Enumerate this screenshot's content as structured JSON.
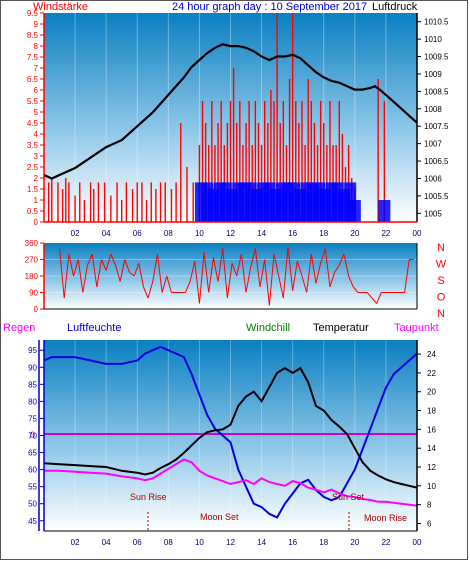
{
  "header": {
    "left_label": "Windstärke",
    "title": "24 hour graph day : 10 September 2017",
    "right_label": "Luftdruck"
  },
  "panel3_header": {
    "regen": "Regen",
    "luftfeuchte": "Luftfeuchte",
    "windchill": "Windchill",
    "temperatur": "Temperatur",
    "taupunkt": "Taupunkt"
  },
  "direction_letters": [
    "N",
    "W",
    "S",
    "O",
    "N"
  ],
  "time_ticks": [
    "02",
    "04",
    "06",
    "08",
    "10",
    "12",
    "14",
    "16",
    "18",
    "20",
    "22",
    "00"
  ],
  "annotations": {
    "sun_rise": "Sun Rise",
    "moon_set": "Moon Set",
    "sun_set": "Sun Set",
    "moon_rise": "Moon Rise",
    "rain_zero": "0"
  },
  "colors": {
    "wind": "#ff0000",
    "gust": "#0000ff",
    "pressure": "#000000",
    "humidity": "#0000dd",
    "temperature": "#000000",
    "dewpoint": "#ff00ff",
    "windchill": "#008000",
    "bg_top": "#0a7fc0",
    "bg_bottom": "#ffffff"
  },
  "chart_data": [
    {
      "type": "line",
      "title": "24 hour graph day : 10 September 2017",
      "x_unit": "hour",
      "xlim": [
        0,
        24
      ],
      "left_axis": {
        "label": "Windstärke",
        "ticks": [
          "0",
          "0.5",
          "1",
          "1.5",
          "2",
          "2.5",
          "3",
          "3.5",
          "4",
          "4.5",
          "5",
          "5.5",
          "6",
          "6.5",
          "7",
          "7.5",
          "8",
          "8.5",
          "9",
          "9.5"
        ],
        "ylim": [
          0,
          9.5
        ]
      },
      "right_axis": {
        "label": "Luftdruck",
        "ticks": [
          "1005",
          "1005.5",
          "1006",
          "1006.5",
          "1007",
          "1007.5",
          "1008",
          "1008.5",
          "1009",
          "1009.5",
          "1010",
          "1010.5"
        ],
        "ylim": [
          1004.75,
          1010.75
        ]
      },
      "series": [
        {
          "name": "Luftdruck",
          "axis": "right",
          "x": [
            0,
            0.5,
            1,
            1.5,
            2,
            3,
            4,
            5,
            6,
            7,
            8,
            9,
            9.5,
            10,
            10.5,
            11,
            11.5,
            12,
            12.5,
            13,
            13.5,
            14,
            14.5,
            15,
            15.5,
            16,
            16.5,
            17,
            17.5,
            18,
            18.5,
            19,
            19.5,
            20,
            20.5,
            21,
            21.3,
            21.6,
            22,
            22.5,
            23,
            23.5,
            24
          ],
          "y": [
            1006.1,
            1006.0,
            1006.1,
            1006.2,
            1006.3,
            1006.6,
            1006.9,
            1007.1,
            1007.5,
            1007.9,
            1008.4,
            1008.9,
            1009.2,
            1009.4,
            1009.6,
            1009.75,
            1009.85,
            1009.8,
            1009.8,
            1009.75,
            1009.65,
            1009.5,
            1009.4,
            1009.5,
            1009.5,
            1009.55,
            1009.45,
            1009.25,
            1009.05,
            1008.9,
            1008.8,
            1008.75,
            1008.65,
            1008.55,
            1008.55,
            1008.6,
            1008.65,
            1008.55,
            1008.4,
            1008.2,
            1008.0,
            1007.8,
            1007.6
          ]
        },
        {
          "name": "Windstärke",
          "axis": "left",
          "style": "bars",
          "x": [
            0.3,
            0.5,
            0.9,
            1.2,
            1.4,
            1.6,
            2.0,
            2.3,
            2.6,
            3.0,
            3.2,
            3.5,
            3.9,
            4.3,
            4.7,
            5.0,
            5.3,
            5.7,
            6.0,
            6.3,
            6.6,
            6.9,
            7.2,
            7.5,
            7.8,
            8.2,
            8.5,
            8.8,
            9.2,
            9.6,
            10.0,
            10.2,
            10.4,
            10.6,
            10.8,
            11.0,
            11.2,
            11.4,
            11.6,
            11.8,
            12.0,
            12.2,
            12.4,
            12.6,
            12.8,
            13.0,
            13.2,
            13.4,
            13.6,
            13.8,
            14.0,
            14.2,
            14.4,
            14.6,
            14.8,
            15.0,
            15.2,
            15.4,
            15.6,
            15.8,
            16.0,
            16.2,
            16.4,
            16.6,
            16.8,
            17.0,
            17.2,
            17.4,
            17.6,
            17.8,
            18.0,
            18.2,
            18.4,
            18.6,
            18.8,
            19.0,
            19.2,
            19.4,
            19.6,
            19.8,
            20.0,
            21.5,
            21.9
          ],
          "y": [
            1.8,
            2.0,
            1.8,
            1.5,
            2.0,
            1.8,
            1.2,
            1.8,
            1.0,
            1.8,
            1.5,
            1.8,
            1.8,
            1.2,
            1.8,
            1.0,
            1.8,
            1.5,
            1.8,
            1.8,
            1.0,
            1.8,
            1.5,
            1.8,
            1.8,
            1.5,
            1.8,
            4.5,
            2.5,
            1.8,
            3.5,
            5.5,
            4.5,
            3.5,
            5.5,
            3.5,
            4.5,
            5.5,
            3.5,
            4.5,
            5.5,
            7.0,
            4.5,
            5.5,
            3.5,
            4.5,
            5.5,
            3.5,
            5.5,
            4.5,
            3.5,
            5.5,
            4.5,
            6.0,
            5.5,
            9.5,
            4.5,
            5.5,
            3.5,
            6.5,
            9.5,
            5.5,
            4.5,
            5.5,
            3.5,
            6.5,
            5.5,
            4.5,
            3.5,
            5.5,
            4.5,
            3.5,
            5.5,
            3.5,
            3.5,
            5.5,
            4.0,
            2.5,
            3.5,
            2.0,
            1.5,
            6.5,
            5.5
          ]
        },
        {
          "name": "Böen",
          "axis": "left",
          "style": "bars",
          "x": [
            10.1,
            10.5,
            10.9,
            11.3,
            11.7,
            12.1,
            12.5,
            12.9,
            13.3,
            13.7,
            14.1,
            14.5,
            14.9,
            15.3,
            15.7,
            16.1,
            16.5,
            16.9,
            17.3,
            17.7,
            18.1,
            18.5,
            18.9,
            19.3,
            19.7,
            20.0,
            21.9
          ],
          "y": [
            1.8,
            1.8,
            1.5,
            1.8,
            1.8,
            1.5,
            1.8,
            1.8,
            1.8,
            1.5,
            1.8,
            1.8,
            1.5,
            1.8,
            1.8,
            1.8,
            1.5,
            1.8,
            1.8,
            1.8,
            1.5,
            1.8,
            1.8,
            1.5,
            1.8,
            1.0,
            1.0
          ]
        }
      ]
    },
    {
      "type": "line",
      "title": "",
      "x_unit": "hour",
      "xlim": [
        0,
        24
      ],
      "ylim": [
        0,
        360
      ],
      "y_ticks": [
        "0",
        "90",
        "180",
        "270",
        "360"
      ],
      "right_labels": [
        "N",
        "W",
        "S",
        "O",
        "N"
      ],
      "series": [
        {
          "name": "Windrichtung",
          "x": [
            1.0,
            1.3,
            1.6,
            1.9,
            2.2,
            2.5,
            2.8,
            3.1,
            3.4,
            3.7,
            4.0,
            4.3,
            4.6,
            4.9,
            5.2,
            5.5,
            5.8,
            6.1,
            6.4,
            6.7,
            7.0,
            7.3,
            7.6,
            7.9,
            8.2,
            8.5,
            8.8,
            9.1,
            9.4,
            9.7,
            10.0,
            10.3,
            10.6,
            10.9,
            11.2,
            11.5,
            11.8,
            12.1,
            12.4,
            12.7,
            13.0,
            13.3,
            13.6,
            13.9,
            14.2,
            14.5,
            14.8,
            15.1,
            15.4,
            15.7,
            16.0,
            16.3,
            16.6,
            16.9,
            17.2,
            17.5,
            17.8,
            18.1,
            18.4,
            18.7,
            19.0,
            19.3,
            19.6,
            19.9,
            20.2,
            20.5,
            20.8,
            21.1,
            21.4,
            21.7,
            22.0,
            22.3,
            22.6,
            22.9,
            23.2,
            23.5,
            23.8
          ],
          "y": [
            330,
            60,
            300,
            180,
            270,
            90,
            240,
            300,
            120,
            270,
            210,
            300,
            240,
            150,
            270,
            200,
            180,
            250,
            120,
            60,
            150,
            300,
            90,
            180,
            90,
            90,
            90,
            90,
            150,
            260,
            30,
            310,
            90,
            280,
            150,
            330,
            60,
            250,
            180,
            300,
            90,
            230,
            330,
            120,
            270,
            20,
            300,
            180,
            60,
            340,
            100,
            260,
            180,
            90,
            300,
            140,
            250,
            330,
            120,
            200,
            240,
            300,
            180,
            120,
            90,
            90,
            90,
            60,
            30,
            90,
            90,
            90,
            90,
            90,
            90,
            270,
            270
          ]
        }
      ]
    },
    {
      "type": "line",
      "title": "",
      "x_unit": "hour",
      "xlim": [
        0,
        24
      ],
      "left_axis": {
        "label": "Luftfeuchte",
        "ticks": [
          "45",
          "50",
          "55",
          "60",
          "65",
          "70",
          "75",
          "80",
          "85",
          "90",
          "95"
        ],
        "ylim": [
          42,
          98
        ]
      },
      "right_axis": {
        "label": "Temperatur",
        "ticks": [
          "6",
          "8",
          "10",
          "12",
          "14",
          "16",
          "18",
          "20",
          "22",
          "24"
        ],
        "ylim": [
          5.2,
          25.5
        ]
      },
      "series": [
        {
          "name": "Luftfeuchte",
          "axis": "left",
          "x": [
            0,
            0.5,
            1,
            2,
            3,
            4,
            5,
            6,
            6.5,
            7,
            7.5,
            8,
            8.5,
            9,
            9.5,
            10,
            10.5,
            11,
            11.5,
            12,
            12.5,
            13,
            13.5,
            14,
            14.5,
            15,
            15.5,
            16,
            16.5,
            17,
            17.5,
            18,
            18.5,
            19,
            19.5,
            20,
            20.5,
            21,
            21.5,
            22,
            22.5,
            23,
            23.5,
            24
          ],
          "y": [
            92,
            93,
            93,
            93,
            92,
            91,
            91,
            92,
            94,
            95,
            96,
            95,
            94,
            93,
            88,
            82,
            76,
            72,
            70,
            68,
            60,
            55,
            50,
            49,
            47,
            46,
            50,
            53,
            56,
            57,
            54,
            52,
            51,
            52,
            56,
            60,
            66,
            72,
            78,
            84,
            88,
            90,
            92,
            94
          ]
        },
        {
          "name": "Temperatur",
          "axis": "right",
          "x": [
            0,
            1,
            2,
            3,
            4,
            5,
            6,
            6.5,
            7,
            7.5,
            8,
            8.5,
            9,
            9.5,
            10,
            10.5,
            11,
            11.5,
            12,
            12.5,
            13,
            13.5,
            14,
            14.5,
            15,
            15.5,
            16,
            16.5,
            17,
            17.5,
            18,
            18.5,
            19,
            19.5,
            20,
            20.5,
            21,
            21.5,
            22,
            22.5,
            23,
            23.5,
            24
          ],
          "y": [
            12.4,
            12.3,
            12.2,
            12.1,
            12.0,
            11.6,
            11.4,
            11.2,
            11.4,
            11.9,
            12.3,
            12.8,
            13.5,
            14.3,
            15.1,
            15.7,
            15.9,
            16.0,
            16.5,
            18.5,
            19.5,
            20.0,
            19.0,
            20.5,
            22.0,
            22.5,
            22.0,
            22.5,
            21.0,
            18.5,
            18.0,
            17.0,
            16.3,
            15.5,
            14.0,
            12.5,
            11.6,
            11.1,
            10.7,
            10.4,
            10.2,
            10.0,
            9.8
          ]
        },
        {
          "name": "Taupunkt",
          "axis": "right",
          "x": [
            0,
            1,
            2,
            3,
            4,
            5,
            6,
            6.5,
            7,
            7.5,
            8,
            8.5,
            9,
            9.5,
            10,
            10.5,
            11,
            11.5,
            12,
            12.5,
            13,
            13.5,
            14,
            14.5,
            15,
            15.5,
            16,
            16.5,
            17,
            17.5,
            18,
            18.5,
            19,
            19.5,
            20,
            20.5,
            21,
            21.5,
            22,
            22.5,
            23,
            23.5,
            24
          ],
          "y": [
            11.6,
            11.6,
            11.5,
            11.4,
            11.3,
            11.0,
            10.8,
            10.6,
            10.8,
            11.3,
            11.8,
            12.3,
            12.8,
            12.5,
            11.6,
            11.1,
            10.8,
            10.5,
            10.2,
            10.4,
            10.6,
            10.2,
            10.8,
            10.4,
            10.2,
            10.0,
            10.5,
            10.3,
            9.8,
            9.6,
            9.3,
            9.6,
            9.2,
            8.9,
            8.8,
            8.6,
            8.5,
            8.3,
            8.3,
            8.2,
            8.1,
            8.0,
            7.9
          ]
        }
      ]
    }
  ]
}
